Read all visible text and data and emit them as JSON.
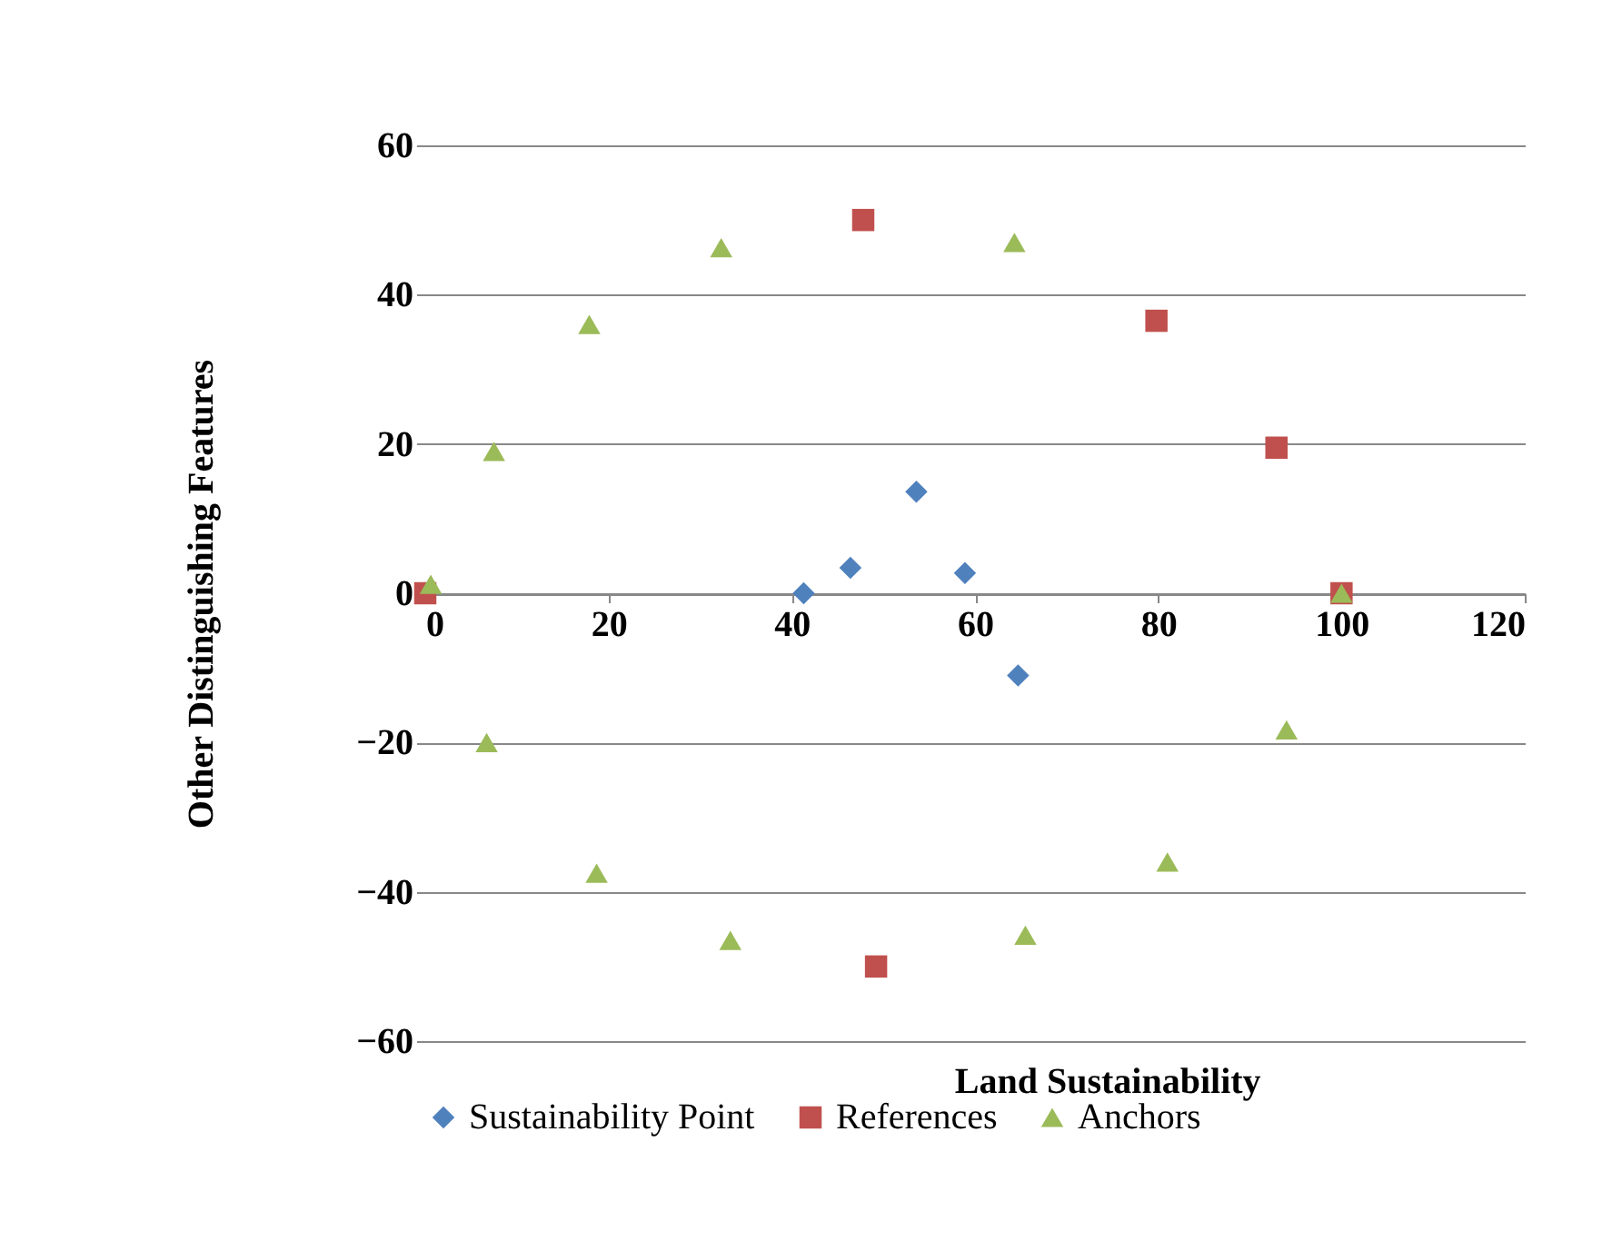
{
  "chart_data": {
    "type": "scatter",
    "xlabel": "Land Sustainability",
    "ylabel": "Other Distinguishing Features",
    "xlim": [
      0,
      120
    ],
    "xticks": [
      0,
      20,
      40,
      60,
      80,
      100,
      120
    ],
    "ylim": [
      -60,
      60
    ],
    "yticks": [
      -60,
      -40,
      -20,
      0,
      20,
      40,
      60
    ],
    "grid": "y",
    "legend": "bottom",
    "series": [
      {
        "name": "Sustainability Point",
        "color": "#4f81bd",
        "marker": "diamond",
        "x": [
          41.3,
          46.4,
          53.6,
          58.9,
          64.7
        ],
        "values": [
          0,
          3.4,
          13.6,
          2.7,
          -11
        ]
      },
      {
        "name": "References",
        "color": "#c0504d",
        "marker": "square",
        "x": [
          0,
          47.8,
          79.8,
          92.9,
          100,
          49.2
        ],
        "values": [
          0,
          50,
          36.5,
          19.5,
          0,
          -50
        ]
      },
      {
        "name": "Anchors",
        "color": "#9bbb59",
        "marker": "triangle",
        "x": [
          0.6,
          7.5,
          17.9,
          32.3,
          64.3,
          100,
          94,
          81,
          65.5,
          33.3,
          18.7,
          6.7
        ],
        "values": [
          1.2,
          19,
          36,
          46.3,
          47,
          0,
          -18.3,
          -36,
          -45.8,
          -46.5,
          -37.5,
          -20
        ]
      }
    ]
  }
}
